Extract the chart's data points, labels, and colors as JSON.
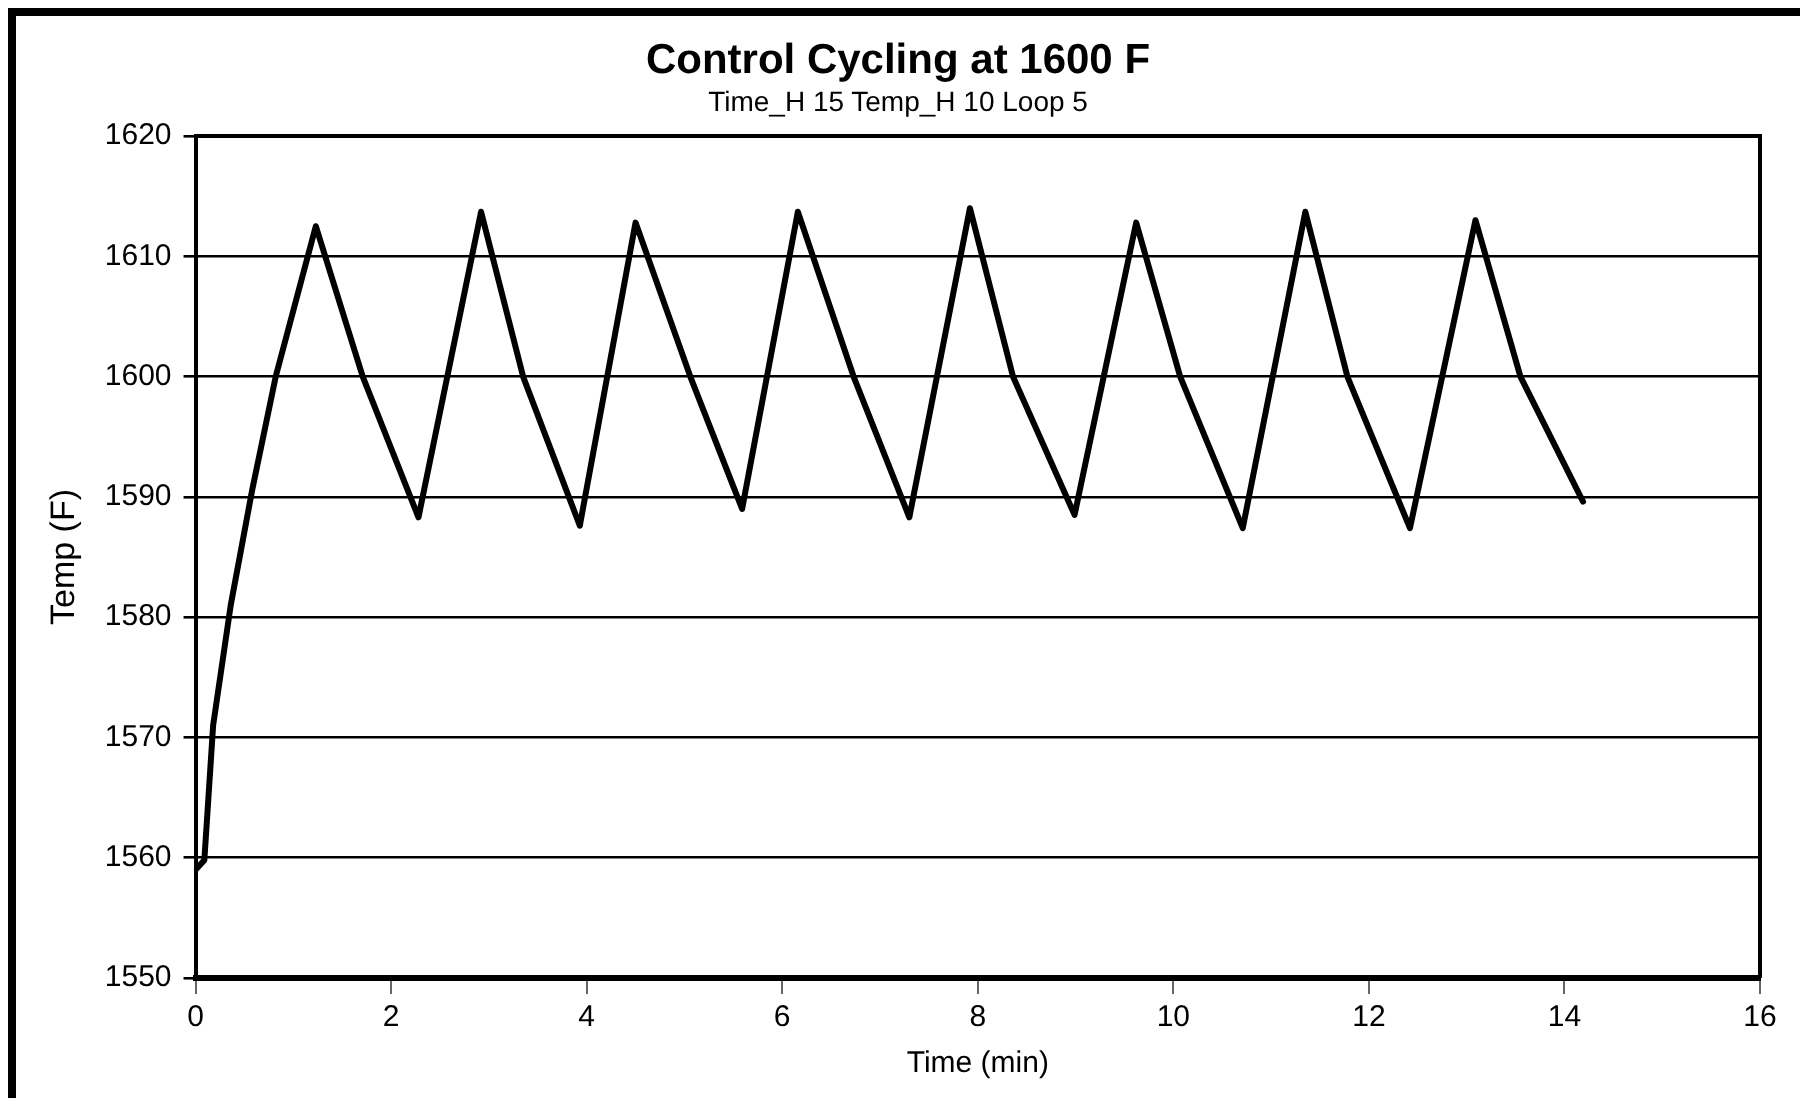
{
  "chart_data": {
    "type": "line",
    "title": "Control Cycling at 1600 F",
    "subtitle": "Time_H 15 Temp_H 10 Loop 5",
    "xlabel": "Time (min)",
    "ylabel": "Temp (F)",
    "series": [
      {
        "color": "#000000",
        "x": [
          0,
          0.09,
          0.18,
          0.36,
          0.58,
          0.82,
          1.23,
          1.71,
          2.28,
          2.92,
          3.35,
          3.93,
          4.5,
          5.06,
          5.59,
          6.16,
          6.73,
          7.3,
          7.92,
          8.36,
          8.99,
          9.62,
          10.07,
          10.71,
          11.35,
          11.78,
          12.42,
          13.09,
          13.55,
          14.19
        ],
        "values": [
          1559,
          1559.8,
          1571,
          1581,
          1590.6,
          1600,
          1612.5,
          1600,
          1588.3,
          1613.7,
          1600,
          1587.6,
          1612.8,
          1600,
          1589,
          1613.7,
          1600,
          1588.3,
          1614,
          1600,
          1588.5,
          1612.8,
          1600,
          1587.4,
          1613.7,
          1600,
          1587.4,
          1613,
          1600,
          1589.6
        ]
      }
    ],
    "xlim": [
      0,
      16
    ],
    "xticks": [
      0,
      2,
      4,
      6,
      8,
      10,
      12,
      14,
      16
    ],
    "ylim": [
      1550,
      1620
    ],
    "yticks": [
      1550,
      1560,
      1570,
      1580,
      1590,
      1600,
      1610,
      1620
    ],
    "grid": "y",
    "legend": false,
    "marker": "none",
    "line_style": "solid"
  }
}
